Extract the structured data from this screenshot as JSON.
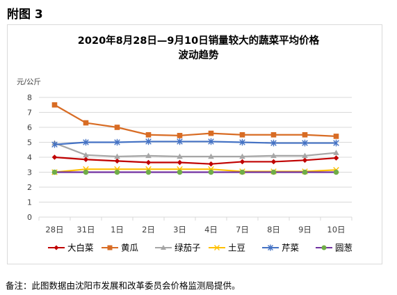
{
  "figure_label": "附图 3",
  "footnote": "备注：此图数据由沈阳市发展和改革委员会价格监测局提供。",
  "colors": {
    "大白菜": "#c00000",
    "黄瓜": "#d86c24",
    "绿茄子": "#a6a6a6",
    "土豆": "#ffc000",
    "芹菜": "#4472c4",
    "圆葱": "#7030a0",
    "圆葱_marker": "#70ad47"
  },
  "chart_data": {
    "type": "line",
    "title_lines": [
      "2020年8月28日—9月10日销量较大的蔬菜平均价格",
      "波动趋势"
    ],
    "ylabel": "元/公斤",
    "xlabel": "",
    "categories": [
      "28日",
      "31日",
      "1日",
      "2日",
      "3日",
      "4日",
      "7日",
      "8日",
      "9日",
      "10日"
    ],
    "ylim": [
      0,
      8
    ],
    "yticks": [
      0,
      1,
      2,
      3,
      4,
      5,
      6,
      7,
      8
    ],
    "grid": true,
    "legend_position": "bottom",
    "series": [
      {
        "name": "大白菜",
        "marker": "diamond",
        "values": [
          4.0,
          3.85,
          3.75,
          3.65,
          3.65,
          3.55,
          3.7,
          3.7,
          3.8,
          3.95
        ]
      },
      {
        "name": "黄瓜",
        "marker": "square",
        "values": [
          7.5,
          6.3,
          6.0,
          5.5,
          5.45,
          5.6,
          5.5,
          5.5,
          5.5,
          5.4
        ]
      },
      {
        "name": "绿茄子",
        "marker": "triangle",
        "values": [
          4.95,
          4.15,
          4.05,
          4.1,
          4.05,
          4.05,
          4.05,
          4.1,
          4.1,
          4.3
        ]
      },
      {
        "name": "土豆",
        "marker": "x",
        "values": [
          3.0,
          3.2,
          3.2,
          3.2,
          3.2,
          3.2,
          3.05,
          3.05,
          3.05,
          3.15
        ]
      },
      {
        "name": "芹菜",
        "marker": "star",
        "values": [
          4.85,
          5.0,
          5.0,
          5.05,
          5.05,
          5.05,
          5.0,
          4.95,
          4.95,
          4.95
        ]
      },
      {
        "name": "圆葱",
        "marker": "circle",
        "values": [
          3.0,
          3.0,
          3.0,
          3.0,
          3.0,
          3.0,
          3.0,
          3.0,
          3.0,
          3.0
        ]
      }
    ]
  }
}
